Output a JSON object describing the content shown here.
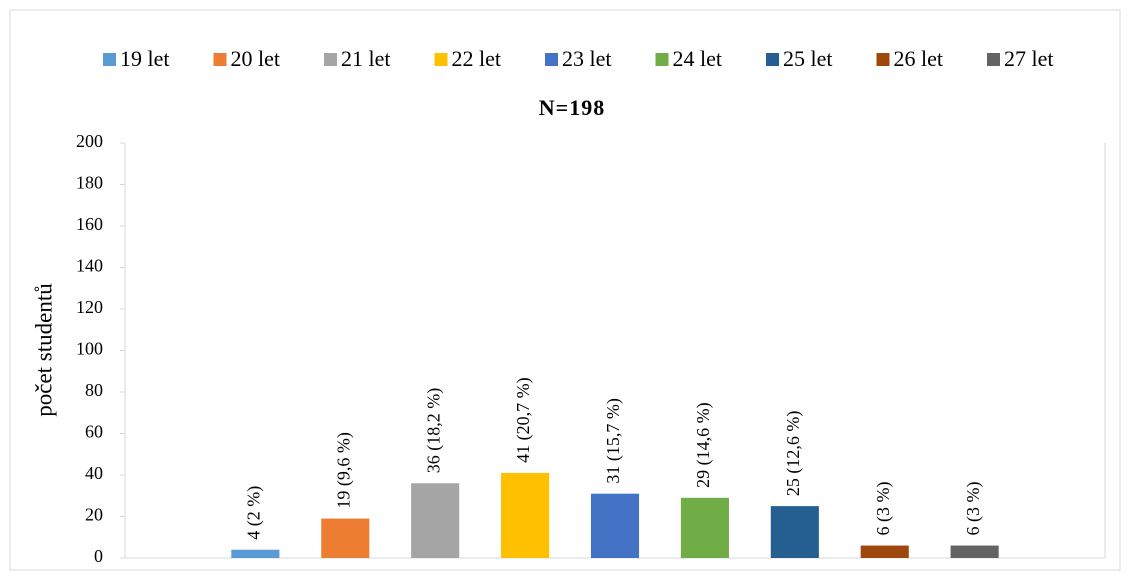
{
  "chart_data": {
    "type": "bar",
    "title": "N=198",
    "y_label": "počet studentů",
    "categories": [
      null
    ],
    "series": [
      {
        "name": "19 let",
        "color": "#5b9bd5",
        "values": [
          4
        ],
        "value_labels": [
          "4 (2 %)"
        ]
      },
      {
        "name": "20 let",
        "color": "#ed7d31",
        "values": [
          19
        ],
        "value_labels": [
          "19 (9,6 %)"
        ]
      },
      {
        "name": "21 let",
        "color": "#a5a5a5",
        "values": [
          36
        ],
        "value_labels": [
          "36 (18,2 %)"
        ]
      },
      {
        "name": "22 let",
        "color": "#ffc000",
        "values": [
          41
        ],
        "value_labels": [
          "41 (20,7 %)"
        ]
      },
      {
        "name": "23 let",
        "color": "#4472c4",
        "values": [
          31
        ],
        "value_labels": [
          "31 (15,7 %)"
        ]
      },
      {
        "name": "24 let",
        "color": "#70ad47",
        "values": [
          29
        ],
        "value_labels": [
          "29 (14,6 %)"
        ]
      },
      {
        "name": "25 let",
        "color": "#255e91",
        "values": [
          25
        ],
        "value_labels": [
          "25 (12,6 %)"
        ]
      },
      {
        "name": "26 let",
        "color": "#9e480e",
        "values": [
          6
        ],
        "value_labels": [
          "6 (3 %)"
        ]
      },
      {
        "name": "27 let",
        "color": "#636363",
        "values": [
          6
        ],
        "value_labels": [
          "6 (3 %)"
        ]
      }
    ],
    "ylim": [
      0,
      200
    ],
    "yticks": [
      0,
      20,
      40,
      60,
      80,
      100,
      120,
      140,
      160,
      180,
      200
    ],
    "legend": "top",
    "grid": false
  }
}
